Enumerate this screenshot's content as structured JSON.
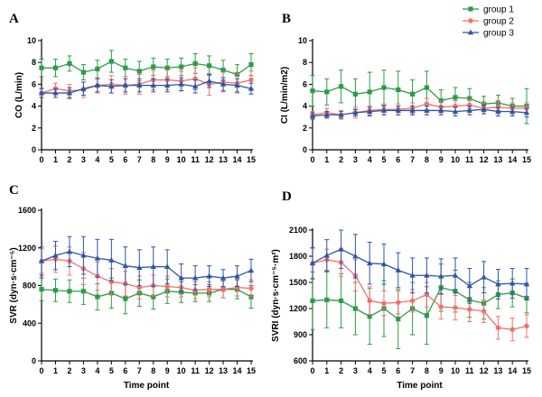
{
  "colors": {
    "group 1": "#2e9b46",
    "group 2": "#f07070",
    "group 3": "#2f55a4"
  },
  "legend": [
    {
      "name": "group 1",
      "marker": "square"
    },
    {
      "name": "group 2",
      "marker": "circle"
    },
    {
      "name": "group 3",
      "marker": "triangle"
    }
  ],
  "chart_data": [
    {
      "panel": "A",
      "type": "line",
      "xlabel": "",
      "ylabel": "CO (L/min)",
      "x": [
        0,
        1,
        2,
        3,
        4,
        5,
        6,
        7,
        8,
        9,
        10,
        11,
        12,
        13,
        14,
        15
      ],
      "xticks": [
        "0",
        "1",
        "2",
        "3",
        "4",
        "5",
        "6",
        "7",
        "8",
        "9",
        "10",
        "11",
        "12",
        "13",
        "14",
        "15"
      ],
      "ylim": [
        0,
        10
      ],
      "yticks": [
        "0",
        "2",
        "4",
        "6",
        "8",
        "10"
      ],
      "series": [
        {
          "name": "group 1",
          "values": [
            7.5,
            7.5,
            7.9,
            7.1,
            7.4,
            8.1,
            7.5,
            7.2,
            7.6,
            7.5,
            7.6,
            7.9,
            7.7,
            7.3,
            6.9,
            7.8
          ],
          "err": [
            0.8,
            0.8,
            0.7,
            0.7,
            0.8,
            1.0,
            0.8,
            0.9,
            0.8,
            0.8,
            0.8,
            0.9,
            0.9,
            0.9,
            0.9,
            1.0
          ]
        },
        {
          "name": "group 2",
          "values": [
            5.2,
            5.6,
            5.4,
            5.5,
            5.9,
            6.0,
            5.9,
            6.0,
            6.4,
            6.4,
            6.3,
            6.5,
            6.0,
            6.2,
            6.1,
            6.4
          ],
          "err": [
            0.4,
            0.5,
            0.6,
            0.7,
            0.7,
            0.8,
            0.8,
            0.9,
            0.9,
            0.9,
            0.9,
            1.0,
            1.0,
            0.9,
            0.9,
            0.8
          ]
        },
        {
          "name": "group 3",
          "values": [
            5.2,
            5.2,
            5.2,
            5.6,
            5.9,
            5.8,
            5.9,
            5.9,
            5.9,
            5.9,
            6.0,
            5.8,
            6.3,
            6.0,
            5.9,
            5.6
          ],
          "err": [
            0.4,
            0.4,
            0.5,
            0.6,
            0.6,
            0.6,
            0.6,
            0.6,
            0.6,
            0.6,
            0.6,
            0.6,
            0.6,
            0.6,
            0.6,
            0.5
          ]
        }
      ]
    },
    {
      "panel": "B",
      "type": "line",
      "xlabel": "",
      "ylabel": "CI (L/min/m2)",
      "x": [
        0,
        1,
        2,
        3,
        4,
        5,
        6,
        7,
        8,
        9,
        10,
        11,
        12,
        13,
        14,
        15
      ],
      "xticks": [
        "0",
        "1",
        "2",
        "3",
        "4",
        "5",
        "6",
        "7",
        "8",
        "9",
        "10",
        "11",
        "12",
        "13",
        "14",
        "15"
      ],
      "ylim": [
        0,
        10
      ],
      "yticks": [
        "0",
        "2",
        "4",
        "6",
        "8",
        "10"
      ],
      "series": [
        {
          "name": "group 1",
          "values": [
            5.4,
            5.3,
            5.8,
            5.1,
            5.3,
            5.7,
            5.5,
            5.1,
            5.7,
            4.5,
            4.8,
            4.7,
            4.2,
            4.3,
            4.0,
            4.0
          ],
          "err": [
            1.4,
            1.2,
            1.5,
            1.4,
            1.8,
            1.6,
            1.7,
            1.3,
            1.5,
            1.0,
            0.9,
            0.9,
            0.7,
            0.7,
            0.7,
            1.6
          ]
        },
        {
          "name": "group 2",
          "values": [
            3.2,
            3.4,
            3.2,
            3.4,
            3.6,
            3.7,
            3.7,
            3.8,
            4.2,
            3.9,
            4.0,
            4.1,
            3.8,
            3.9,
            3.8,
            3.8
          ],
          "err": [
            0.3,
            0.4,
            0.4,
            0.5,
            0.4,
            0.5,
            0.5,
            0.5,
            0.5,
            0.5,
            0.5,
            0.5,
            0.5,
            0.5,
            0.5,
            0.5
          ]
        },
        {
          "name": "group 3",
          "values": [
            3.1,
            3.2,
            3.2,
            3.4,
            3.5,
            3.6,
            3.6,
            3.6,
            3.6,
            3.6,
            3.5,
            3.6,
            3.7,
            3.5,
            3.5,
            3.4
          ],
          "err": [
            0.3,
            0.3,
            0.3,
            0.3,
            0.4,
            0.4,
            0.4,
            0.4,
            0.4,
            0.4,
            0.4,
            0.4,
            0.4,
            0.4,
            0.4,
            0.4
          ]
        }
      ]
    },
    {
      "panel": "C",
      "type": "line",
      "xlabel": "Time point",
      "ylabel": "SVR (dyn·s·cm⁻⁵)",
      "x": [
        0,
        1,
        2,
        3,
        4,
        5,
        6,
        7,
        8,
        9,
        10,
        11,
        12,
        13,
        14,
        15
      ],
      "xticks": [
        "0",
        "1",
        "2",
        "3",
        "4",
        "5",
        "6",
        "7",
        "8",
        "9",
        "10",
        "11",
        "12",
        "13",
        "14",
        "15"
      ],
      "ylim": [
        0,
        1600
      ],
      "yticks": [
        "0",
        "400",
        "800",
        "1200",
        "1600"
      ],
      "series": [
        {
          "name": "group 1",
          "values": [
            760,
            750,
            740,
            740,
            680,
            720,
            660,
            720,
            680,
            740,
            730,
            720,
            720,
            760,
            760,
            680
          ],
          "err": [
            120,
            120,
            120,
            140,
            140,
            160,
            160,
            140,
            130,
            130,
            110,
            90,
            90,
            90,
            100,
            120
          ]
        },
        {
          "name": "group 2",
          "values": [
            1060,
            1080,
            1060,
            980,
            900,
            840,
            820,
            780,
            800,
            790,
            780,
            750,
            760,
            760,
            780,
            770
          ],
          "err": [
            130,
            140,
            150,
            170,
            150,
            140,
            130,
            120,
            110,
            110,
            100,
            90,
            80,
            90,
            90,
            90
          ]
        },
        {
          "name": "group 3",
          "values": [
            1060,
            1120,
            1160,
            1120,
            1090,
            1070,
            1010,
            990,
            1000,
            1000,
            880,
            880,
            900,
            880,
            900,
            960
          ],
          "err": [
            150,
            150,
            160,
            200,
            200,
            220,
            200,
            190,
            210,
            180,
            150,
            130,
            110,
            90,
            110,
            120
          ]
        }
      ]
    },
    {
      "panel": "D",
      "type": "line",
      "xlabel": "Time point",
      "ylabel": "SVRI (dyn·s·cm⁻⁵·m²)",
      "x": [
        0,
        1,
        2,
        3,
        4,
        5,
        6,
        7,
        8,
        9,
        10,
        11,
        12,
        13,
        14,
        15
      ],
      "xticks": [
        "0",
        "1",
        "2",
        "3",
        "4",
        "5",
        "6",
        "7",
        "8",
        "9",
        "10",
        "11",
        "12",
        "13",
        "14",
        "15"
      ],
      "ylim": [
        600,
        2100
      ],
      "yticks": [
        "600",
        "900",
        "1200",
        "1500",
        "1800",
        "2100"
      ],
      "series": [
        {
          "name": "group 1",
          "values": [
            1290,
            1300,
            1290,
            1200,
            1110,
            1200,
            1080,
            1200,
            1120,
            1440,
            1400,
            1300,
            1260,
            1360,
            1380,
            1320
          ],
          "err": [
            330,
            320,
            310,
            300,
            320,
            320,
            340,
            300,
            330,
            270,
            240,
            200,
            180,
            160,
            160,
            170
          ]
        },
        {
          "name": "group 2",
          "values": [
            1720,
            1760,
            1730,
            1580,
            1290,
            1260,
            1270,
            1290,
            1360,
            1220,
            1210,
            1190,
            1170,
            980,
            960,
            1000
          ],
          "err": [
            170,
            120,
            160,
            180,
            160,
            140,
            130,
            130,
            140,
            140,
            140,
            140,
            130,
            130,
            130,
            130
          ]
        },
        {
          "name": "group 3",
          "values": [
            1720,
            1810,
            1880,
            1800,
            1720,
            1710,
            1640,
            1580,
            1580,
            1570,
            1580,
            1460,
            1560,
            1480,
            1490,
            1480
          ],
          "err": [
            180,
            180,
            220,
            250,
            240,
            230,
            200,
            200,
            200,
            200,
            200,
            200,
            180,
            170,
            170,
            180
          ]
        }
      ]
    }
  ]
}
